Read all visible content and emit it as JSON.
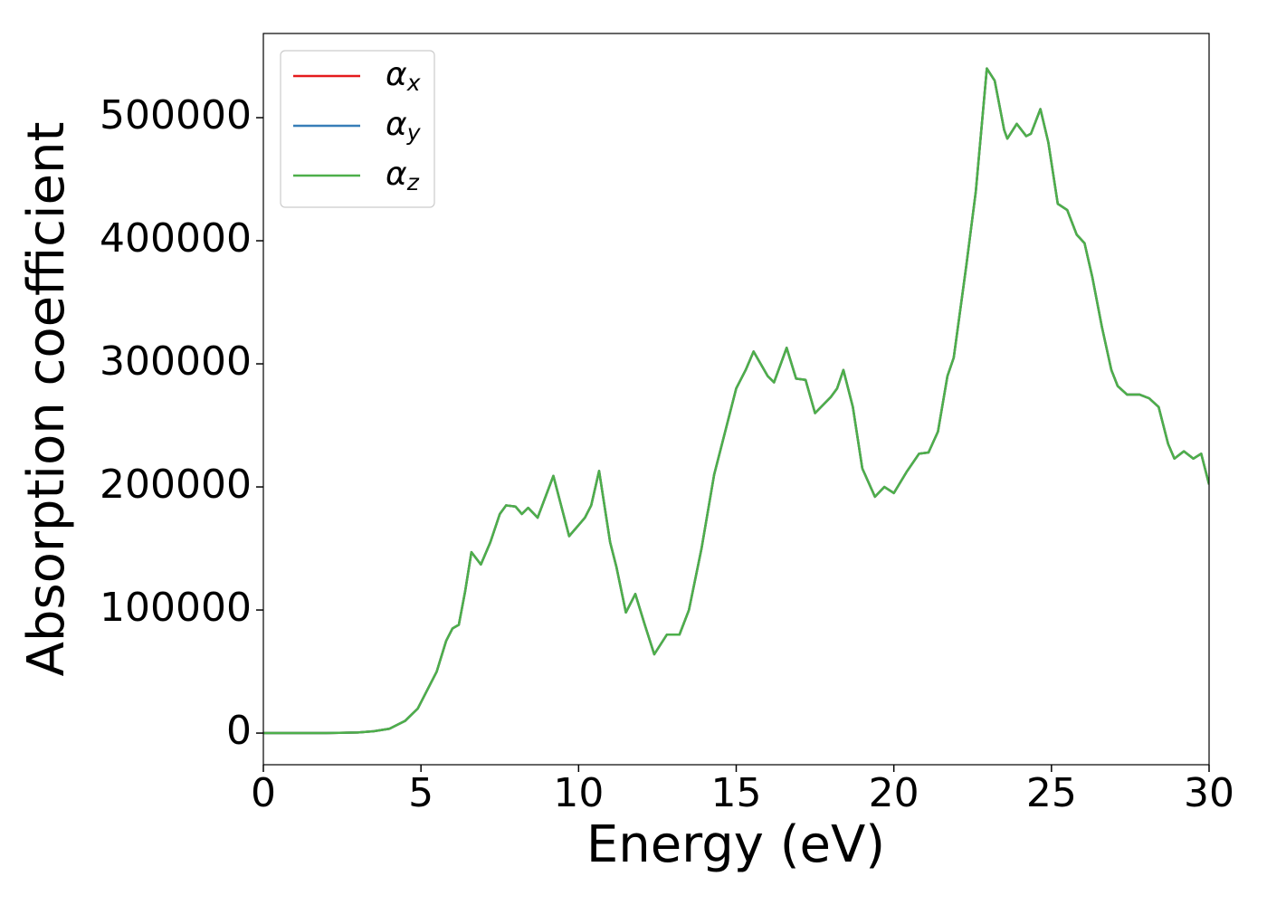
{
  "chart_data": {
    "type": "line",
    "xlabel": "Energy (eV)",
    "ylabel": "Absorption coefficient",
    "x": [
      0,
      2,
      3,
      3.5,
      4,
      4.5,
      4.9,
      5.2,
      5.5,
      5.8,
      6,
      6.2,
      6.4,
      6.6,
      6.9,
      7.2,
      7.5,
      7.7,
      8,
      8.2,
      8.4,
      8.7,
      9.2,
      9.7,
      10.2,
      10.4,
      10.65,
      11,
      11.2,
      11.5,
      11.8,
      12.1,
      12.4,
      12.8,
      13.2,
      13.5,
      13.9,
      14.3,
      14.7,
      15,
      15.3,
      15.55,
      16,
      16.2,
      16.6,
      16.9,
      17.2,
      17.5,
      18,
      18.2,
      18.4,
      18.7,
      19,
      19.4,
      19.7,
      20,
      20.4,
      20.8,
      21.1,
      21.4,
      21.7,
      21.9,
      22.3,
      22.6,
      22.95,
      23.2,
      23.5,
      23.6,
      23.9,
      24.2,
      24.35,
      24.65,
      24.9,
      25.2,
      25.5,
      25.8,
      26.05,
      26.3,
      26.6,
      26.9,
      27.1,
      27.4,
      27.8,
      28.1,
      28.4,
      28.7,
      28.9,
      29.2,
      29.5,
      29.75,
      30
    ],
    "series": [
      {
        "name": "αx",
        "color": "#e41a1c",
        "values": [
          0,
          0,
          500,
          1500,
          3500,
          10000,
          20000,
          35000,
          50000,
          75000,
          85000,
          88000,
          115000,
          147000,
          137000,
          155000,
          178000,
          185000,
          184000,
          178000,
          183000,
          175000,
          209000,
          160000,
          175000,
          185000,
          213000,
          155000,
          135000,
          98000,
          113000,
          88000,
          64000,
          80000,
          80000,
          100000,
          150000,
          210000,
          250000,
          280000,
          295000,
          310000,
          290000,
          285000,
          313000,
          288000,
          287000,
          260000,
          273000,
          280000,
          295000,
          265000,
          215000,
          192000,
          200000,
          195000,
          212000,
          227000,
          228000,
          245000,
          290000,
          305000,
          380000,
          440000,
          540000,
          530000,
          490000,
          483000,
          495000,
          485000,
          487000,
          507000,
          480000,
          430000,
          425000,
          405000,
          398000,
          370000,
          330000,
          295000,
          282000,
          275000,
          275000,
          272000,
          265000,
          235000,
          223000,
          229000,
          223000,
          227000,
          202000
        ]
      },
      {
        "name": "αy",
        "color": "#377eb8",
        "values": [
          0,
          0,
          500,
          1500,
          3500,
          10000,
          20000,
          35000,
          50000,
          75000,
          85000,
          88000,
          115000,
          147000,
          137000,
          155000,
          178000,
          185000,
          184000,
          178000,
          183000,
          175000,
          209000,
          160000,
          175000,
          185000,
          213000,
          155000,
          135000,
          98000,
          113000,
          88000,
          64000,
          80000,
          80000,
          100000,
          150000,
          210000,
          250000,
          280000,
          295000,
          310000,
          290000,
          285000,
          313000,
          288000,
          287000,
          260000,
          273000,
          280000,
          295000,
          265000,
          215000,
          192000,
          200000,
          195000,
          212000,
          227000,
          228000,
          245000,
          290000,
          305000,
          380000,
          440000,
          540000,
          530000,
          490000,
          483000,
          495000,
          485000,
          487000,
          507000,
          480000,
          430000,
          425000,
          405000,
          398000,
          370000,
          330000,
          295000,
          282000,
          275000,
          275000,
          272000,
          265000,
          235000,
          223000,
          229000,
          223000,
          227000,
          202000
        ]
      },
      {
        "name": "αz",
        "color": "#4daf4a",
        "values": [
          0,
          0,
          500,
          1500,
          3500,
          10000,
          20000,
          35000,
          50000,
          75000,
          85000,
          88000,
          115000,
          147000,
          137000,
          155000,
          178000,
          185000,
          184000,
          178000,
          183000,
          175000,
          209000,
          160000,
          175000,
          185000,
          213000,
          155000,
          135000,
          98000,
          113000,
          88000,
          64000,
          80000,
          80000,
          100000,
          150000,
          210000,
          250000,
          280000,
          295000,
          310000,
          290000,
          285000,
          313000,
          288000,
          287000,
          260000,
          273000,
          280000,
          295000,
          265000,
          215000,
          192000,
          200000,
          195000,
          212000,
          227000,
          228000,
          245000,
          290000,
          305000,
          380000,
          440000,
          540000,
          530000,
          490000,
          483000,
          495000,
          485000,
          487000,
          507000,
          480000,
          430000,
          425000,
          405000,
          398000,
          370000,
          330000,
          295000,
          282000,
          275000,
          275000,
          272000,
          265000,
          235000,
          223000,
          229000,
          223000,
          227000,
          202000
        ]
      }
    ],
    "xlim": [
      0,
      30
    ],
    "xticks": [
      0,
      5,
      10,
      15,
      20,
      25,
      30
    ],
    "ylim": [
      -25700,
      568400
    ],
    "yticks": [
      0,
      100000,
      200000,
      300000,
      400000,
      500000
    ],
    "grid": false,
    "legend": "upper left"
  }
}
